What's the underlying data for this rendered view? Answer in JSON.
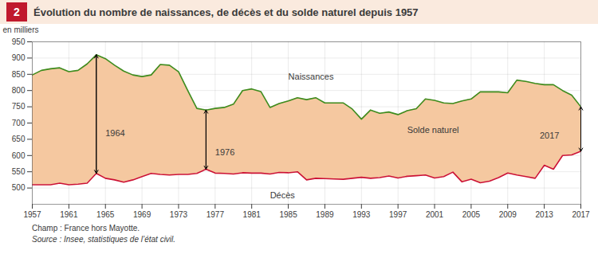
{
  "chart_data": {
    "type": "line",
    "title": "Évolution du nombre de naissances, de décès et du solde naturel depuis 1957",
    "title_number": "2",
    "ylabel": "en milliers",
    "footnotes": [
      "Champ : France hors Mayotte.",
      "Source : Insee, statistiques de l’état civil."
    ],
    "x": [
      1957,
      1958,
      1959,
      1960,
      1961,
      1962,
      1963,
      1964,
      1965,
      1966,
      1967,
      1968,
      1969,
      1970,
      1971,
      1972,
      1973,
      1974,
      1975,
      1976,
      1977,
      1978,
      1979,
      1980,
      1981,
      1982,
      1983,
      1984,
      1985,
      1986,
      1987,
      1988,
      1989,
      1990,
      1991,
      1992,
      1993,
      1994,
      1995,
      1996,
      1997,
      1998,
      1999,
      2000,
      2001,
      2002,
      2003,
      2004,
      2005,
      2006,
      2007,
      2008,
      2009,
      2010,
      2011,
      2012,
      2013,
      2014,
      2015,
      2016,
      2017
    ],
    "series": [
      {
        "name": "Naissances",
        "color": "#3d8c1e",
        "values": [
          848,
          862,
          867,
          870,
          858,
          862,
          882,
          910,
          898,
          878,
          860,
          848,
          843,
          848,
          880,
          878,
          858,
          800,
          745,
          740,
          745,
          748,
          758,
          800,
          805,
          797,
          748,
          760,
          768,
          778,
          772,
          778,
          762,
          762,
          762,
          743,
          712,
          740,
          730,
          734,
          726,
          738,
          744,
          774,
          770,
          762,
          760,
          768,
          774,
          796,
          796,
          796,
          793,
          832,
          828,
          822,
          818,
          818,
          800,
          786,
          750
        ]
      },
      {
        "name": "Décès",
        "color": "#cc1133",
        "values": [
          510,
          510,
          510,
          515,
          510,
          512,
          515,
          545,
          530,
          525,
          518,
          525,
          535,
          545,
          542,
          540,
          542,
          542,
          545,
          558,
          546,
          545,
          543,
          547,
          546,
          546,
          543,
          548,
          547,
          550,
          525,
          530,
          529,
          528,
          527,
          530,
          533,
          530,
          532,
          537,
          531,
          536,
          538,
          540,
          531,
          535,
          549,
          519,
          527,
          516,
          521,
          532,
          546,
          540,
          535,
          530,
          570,
          558,
          600,
          602,
          613
        ]
      }
    ],
    "fill": {
      "between": [
        "Naissances",
        "Décès"
      ],
      "color": "#f5c8a0"
    },
    "xlim": [
      1957,
      2017
    ],
    "xticks": [
      1957,
      1961,
      1965,
      1969,
      1973,
      1977,
      1981,
      1985,
      1989,
      1993,
      1997,
      2001,
      2005,
      2009,
      2013,
      2017
    ],
    "ylim": [
      450,
      950
    ],
    "yticks": [
      500,
      550,
      600,
      650,
      700,
      750,
      800,
      850,
      900,
      950
    ],
    "grid": true,
    "labels": [
      {
        "text": "Naissances",
        "x": 1985,
        "y": 842
      },
      {
        "text": "Décès",
        "x": 1983,
        "y": 476
      },
      {
        "text": "Solde naturel",
        "x": 1998,
        "y": 678
      }
    ],
    "arrows": [
      {
        "x": 1964,
        "y_top": 910,
        "y_bottom": 545,
        "label": "1964",
        "label_x": 1965,
        "label_y": 667.5
      },
      {
        "x": 1976,
        "y_top": 740,
        "y_bottom": 558,
        "label": "1976",
        "label_x": 1977,
        "label_y": 609
      },
      {
        "x": 2017,
        "y_top": 750,
        "y_bottom": 613,
        "label": "2017",
        "label_x": 2012.5,
        "label_y": 661.5
      }
    ]
  }
}
